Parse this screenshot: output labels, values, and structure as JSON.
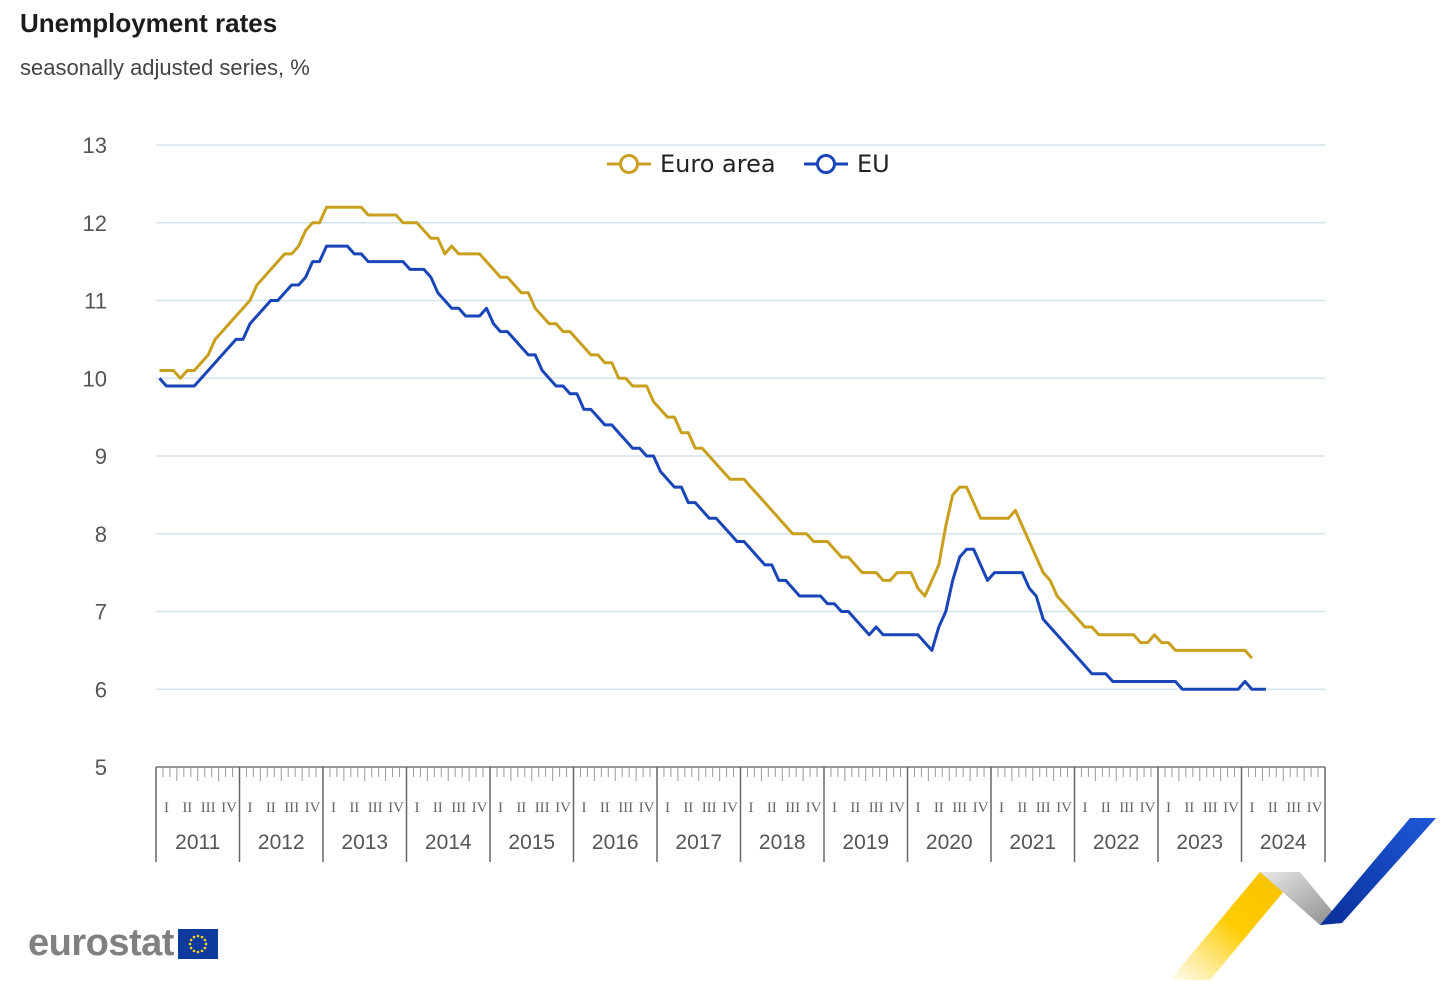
{
  "title": "Unemployment rates",
  "subtitle": "seasonally adjusted series, %",
  "logo_text": "eurostat",
  "chart_data": {
    "type": "line",
    "ylim": [
      5,
      13
    ],
    "yticks": [
      5,
      6,
      7,
      8,
      9,
      10,
      11,
      12,
      13
    ],
    "grid": true,
    "legend_position": "top",
    "x_start": "2011-01",
    "x_end": "2024-12",
    "years": [
      "2011",
      "2012",
      "2013",
      "2014",
      "2015",
      "2016",
      "2017",
      "2018",
      "2019",
      "2020",
      "2021",
      "2022",
      "2023",
      "2024"
    ],
    "quarters": [
      "I",
      "II",
      "III",
      "IV"
    ],
    "series": [
      {
        "name": "Euro area",
        "color": "#c8a01e",
        "values": [
          10.1,
          10.1,
          10.1,
          10.0,
          10.1,
          10.1,
          10.2,
          10.3,
          10.5,
          10.6,
          10.7,
          10.8,
          10.9,
          11.0,
          11.2,
          11.3,
          11.4,
          11.5,
          11.6,
          11.6,
          11.7,
          11.9,
          12.0,
          12.0,
          12.2,
          12.2,
          12.2,
          12.2,
          12.2,
          12.2,
          12.1,
          12.1,
          12.1,
          12.1,
          12.1,
          12.0,
          12.0,
          12.0,
          11.9,
          11.8,
          11.8,
          11.6,
          11.7,
          11.6,
          11.6,
          11.6,
          11.6,
          11.5,
          11.4,
          11.3,
          11.3,
          11.2,
          11.1,
          11.1,
          10.9,
          10.8,
          10.7,
          10.7,
          10.6,
          10.6,
          10.5,
          10.4,
          10.3,
          10.3,
          10.2,
          10.2,
          10.0,
          10.0,
          9.9,
          9.9,
          9.9,
          9.7,
          9.6,
          9.5,
          9.5,
          9.3,
          9.3,
          9.1,
          9.1,
          9.0,
          8.9,
          8.8,
          8.7,
          8.7,
          8.7,
          8.6,
          8.5,
          8.4,
          8.3,
          8.2,
          8.1,
          8.0,
          8.0,
          8.0,
          7.9,
          7.9,
          7.9,
          7.8,
          7.7,
          7.7,
          7.6,
          7.5,
          7.5,
          7.5,
          7.4,
          7.4,
          7.5,
          7.5,
          7.5,
          7.3,
          7.2,
          7.4,
          7.6,
          8.1,
          8.5,
          8.6,
          8.6,
          8.4,
          8.2,
          8.2,
          8.2,
          8.2,
          8.2,
          8.3,
          8.1,
          7.9,
          7.7,
          7.5,
          7.4,
          7.2,
          7.1,
          7.0,
          6.9,
          6.8,
          6.8,
          6.7,
          6.7,
          6.7,
          6.7,
          6.7,
          6.7,
          6.6,
          6.6,
          6.7,
          6.6,
          6.6,
          6.5,
          6.5,
          6.5,
          6.5,
          6.5,
          6.5,
          6.5,
          6.5,
          6.5,
          6.5,
          6.5,
          6.4
        ]
      },
      {
        "name": "EU",
        "color": "#1a45b8",
        "values": [
          10.0,
          9.9,
          9.9,
          9.9,
          9.9,
          9.9,
          10.0,
          10.1,
          10.2,
          10.3,
          10.4,
          10.5,
          10.5,
          10.7,
          10.8,
          10.9,
          11.0,
          11.0,
          11.1,
          11.2,
          11.2,
          11.3,
          11.5,
          11.5,
          11.7,
          11.7,
          11.7,
          11.7,
          11.6,
          11.6,
          11.5,
          11.5,
          11.5,
          11.5,
          11.5,
          11.5,
          11.4,
          11.4,
          11.4,
          11.3,
          11.1,
          11.0,
          10.9,
          10.9,
          10.8,
          10.8,
          10.8,
          10.9,
          10.7,
          10.6,
          10.6,
          10.5,
          10.4,
          10.3,
          10.3,
          10.1,
          10.0,
          9.9,
          9.9,
          9.8,
          9.8,
          9.6,
          9.6,
          9.5,
          9.4,
          9.4,
          9.3,
          9.2,
          9.1,
          9.1,
          9.0,
          9.0,
          8.8,
          8.7,
          8.6,
          8.6,
          8.4,
          8.4,
          8.3,
          8.2,
          8.2,
          8.1,
          8.0,
          7.9,
          7.9,
          7.8,
          7.7,
          7.6,
          7.6,
          7.4,
          7.4,
          7.3,
          7.2,
          7.2,
          7.2,
          7.2,
          7.1,
          7.1,
          7.0,
          7.0,
          6.9,
          6.8,
          6.7,
          6.8,
          6.7,
          6.7,
          6.7,
          6.7,
          6.7,
          6.7,
          6.6,
          6.5,
          6.8,
          7.0,
          7.4,
          7.7,
          7.8,
          7.8,
          7.6,
          7.4,
          7.5,
          7.5,
          7.5,
          7.5,
          7.5,
          7.3,
          7.2,
          6.9,
          6.8,
          6.7,
          6.6,
          6.5,
          6.4,
          6.3,
          6.2,
          6.2,
          6.2,
          6.1,
          6.1,
          6.1,
          6.1,
          6.1,
          6.1,
          6.1,
          6.1,
          6.1,
          6.1,
          6.0,
          6.0,
          6.0,
          6.0,
          6.0,
          6.0,
          6.0,
          6.0,
          6.0,
          6.1,
          6.0,
          6.0,
          6.0
        ]
      }
    ]
  }
}
